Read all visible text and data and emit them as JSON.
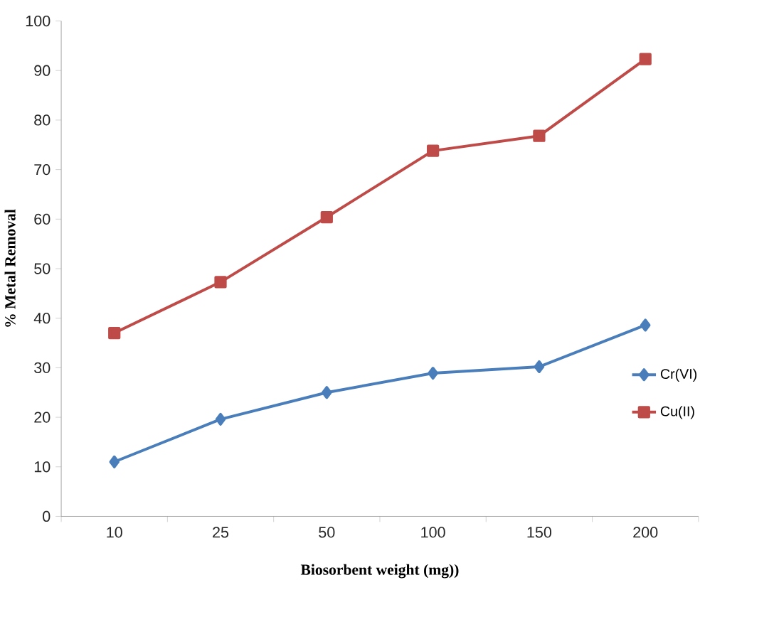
{
  "chart_data": {
    "type": "line",
    "xlabel": "Biosorbent weight (mg))",
    "ylabel": "% Metal Removal",
    "categories": [
      "10",
      "25",
      "50",
      "100",
      "150",
      "200"
    ],
    "series": [
      {
        "name": "Cr(VI)",
        "color": "#4a7ebb",
        "marker": "diamond",
        "values": [
          11,
          19.6,
          25,
          28.9,
          30.2,
          38.6
        ]
      },
      {
        "name": "Cu(II)",
        "color": "#be4b48",
        "marker": "square",
        "values": [
          37,
          47.3,
          60.4,
          73.8,
          76.8,
          92.3
        ]
      }
    ],
    "ylim": [
      0,
      100
    ],
    "yticks": [
      0,
      10,
      20,
      30,
      40,
      50,
      60,
      70,
      80,
      90,
      100
    ],
    "grid": false,
    "legend": "right"
  }
}
